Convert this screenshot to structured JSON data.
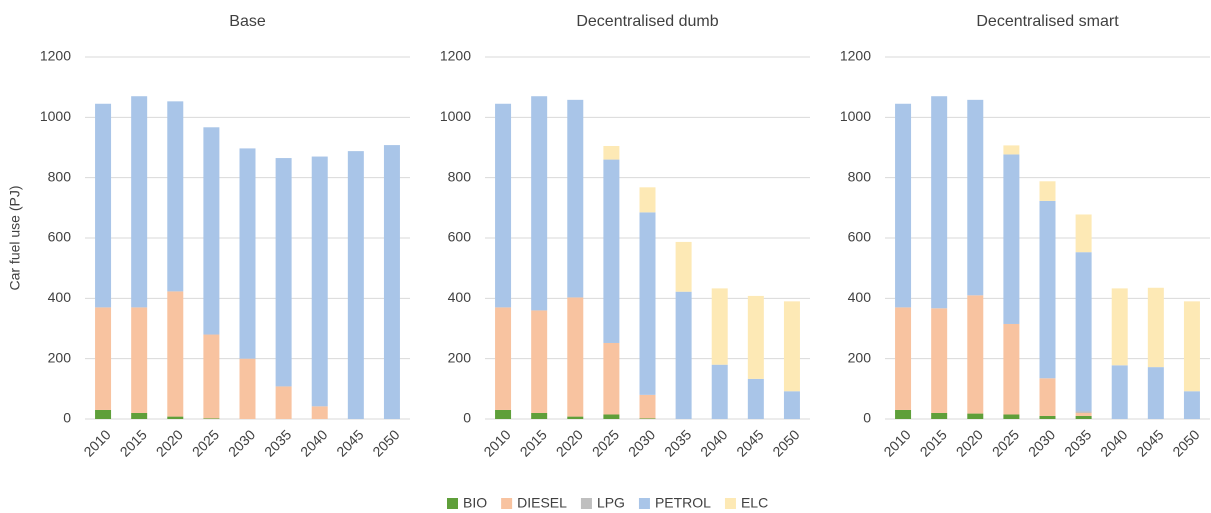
{
  "chart_data": [
    {
      "type": "bar",
      "stacked": true,
      "title": "Base",
      "y_label": "Car fuel use (PJ)",
      "categories": [
        "2010",
        "2015",
        "2020",
        "2025",
        "2030",
        "2035",
        "2040",
        "2045",
        "2050"
      ],
      "ylim": [
        0,
        1200
      ],
      "yticks": [
        0,
        200,
        400,
        600,
        800,
        1000,
        1200
      ],
      "grid": true,
      "series": [
        {
          "name": "BIO",
          "color": "#5f9f3a",
          "values": [
            30,
            20,
            8,
            2,
            0,
            0,
            0,
            0,
            0
          ]
        },
        {
          "name": "DIESEL",
          "color": "#f8c3a0",
          "values": [
            340,
            350,
            415,
            278,
            200,
            108,
            42,
            0,
            0
          ]
        },
        {
          "name": "LPG",
          "color": "#bfbfbf",
          "values": [
            0,
            0,
            0,
            0,
            0,
            0,
            0,
            0,
            0
          ]
        },
        {
          "name": "PETROL",
          "color": "#a9c5e8",
          "values": [
            675,
            700,
            630,
            687,
            697,
            757,
            828,
            888,
            908
          ]
        },
        {
          "name": "ELC",
          "color": "#fde9b5",
          "values": [
            0,
            0,
            0,
            0,
            0,
            0,
            0,
            0,
            0
          ]
        }
      ]
    },
    {
      "type": "bar",
      "stacked": true,
      "title": "Decentralised dumb",
      "categories": [
        "2010",
        "2015",
        "2020",
        "2025",
        "2030",
        "2035",
        "2040",
        "2045",
        "2050"
      ],
      "ylim": [
        0,
        1200
      ],
      "yticks": [
        0,
        200,
        400,
        600,
        800,
        1000,
        1200
      ],
      "grid": true,
      "series": [
        {
          "name": "BIO",
          "color": "#5f9f3a",
          "values": [
            30,
            20,
            8,
            15,
            2,
            0,
            0,
            0,
            0
          ]
        },
        {
          "name": "DIESEL",
          "color": "#f8c3a0",
          "values": [
            340,
            340,
            395,
            237,
            78,
            0,
            0,
            0,
            0
          ]
        },
        {
          "name": "LPG",
          "color": "#bfbfbf",
          "values": [
            0,
            0,
            0,
            0,
            0,
            0,
            0,
            0,
            0
          ]
        },
        {
          "name": "PETROL",
          "color": "#a9c5e8",
          "values": [
            675,
            710,
            655,
            608,
            605,
            422,
            180,
            133,
            92
          ]
        },
        {
          "name": "ELC",
          "color": "#fde9b5",
          "values": [
            0,
            0,
            0,
            45,
            83,
            165,
            253,
            275,
            298
          ]
        }
      ]
    },
    {
      "type": "bar",
      "stacked": true,
      "title": "Decentralised smart",
      "categories": [
        "2010",
        "2015",
        "2020",
        "2025",
        "2030",
        "2035",
        "2040",
        "2045",
        "2050"
      ],
      "ylim": [
        0,
        1200
      ],
      "yticks": [
        0,
        200,
        400,
        600,
        800,
        1000,
        1200
      ],
      "grid": true,
      "series": [
        {
          "name": "BIO",
          "color": "#5f9f3a",
          "values": [
            30,
            20,
            18,
            15,
            10,
            10,
            0,
            0,
            0
          ]
        },
        {
          "name": "DIESEL",
          "color": "#f8c3a0",
          "values": [
            340,
            347,
            392,
            300,
            125,
            10,
            0,
            0,
            0
          ]
        },
        {
          "name": "LPG",
          "color": "#bfbfbf",
          "values": [
            0,
            0,
            0,
            0,
            0,
            5,
            0,
            0,
            0
          ]
        },
        {
          "name": "PETROL",
          "color": "#a9c5e8",
          "values": [
            675,
            703,
            648,
            562,
            588,
            528,
            178,
            172,
            92
          ]
        },
        {
          "name": "ELC",
          "color": "#fde9b5",
          "values": [
            0,
            0,
            0,
            30,
            65,
            125,
            255,
            263,
            298
          ]
        }
      ]
    }
  ]
}
